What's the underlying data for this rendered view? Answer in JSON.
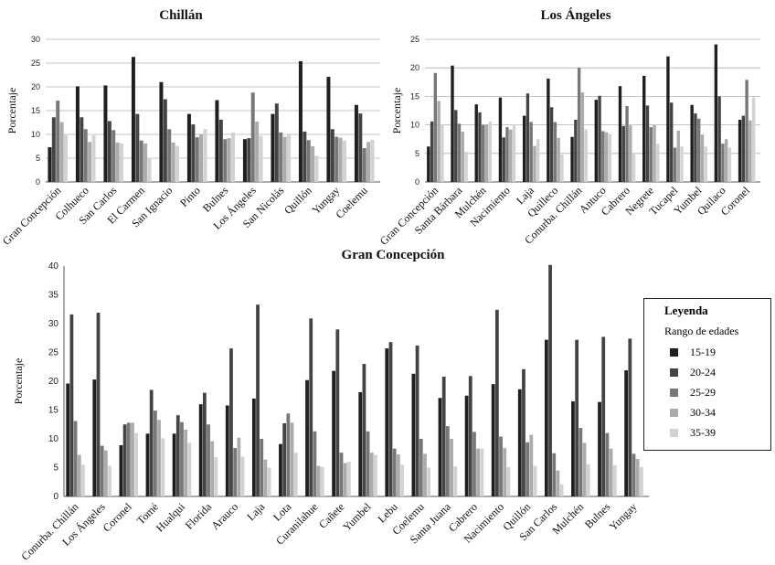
{
  "colors": [
    "#1f1f1f",
    "#444444",
    "#777777",
    "#ababab",
    "#d2d2d2"
  ],
  "legend": {
    "title": "Leyenda",
    "subtitle": "Rango de edades",
    "entries": [
      "15-19",
      "20-24",
      "25-29",
      "30-34",
      "35-39"
    ]
  },
  "chart_data": [
    {
      "type": "bar",
      "title": "Chillán",
      "ylabel": "Porcentaje",
      "xlabel": "",
      "ylim": [
        0,
        30
      ],
      "yticks": [
        0,
        5,
        10,
        15,
        20,
        25,
        30
      ],
      "grid": true,
      "categories": [
        "Gran Concepción",
        "Colhueco",
        "San Carlos",
        "El Carmen",
        "San Ignacio",
        "Pinto",
        "Bulnes",
        "Los Ángeles",
        "San Nicolás",
        "Quillón",
        "Yungay",
        "Coelemu"
      ],
      "series": [
        {
          "name": "15-19",
          "values": [
            7.3,
            20.1,
            20.3,
            26.3,
            21.0,
            14.3,
            17.2,
            9.0,
            14.3,
            25.4,
            22.1,
            16.2
          ]
        },
        {
          "name": "20-24",
          "values": [
            13.6,
            13.6,
            12.8,
            14.3,
            17.4,
            12.1,
            13.1,
            9.2,
            16.5,
            10.6,
            11.1,
            14.4
          ]
        },
        {
          "name": "25-29",
          "values": [
            17.1,
            11.1,
            10.9,
            8.7,
            11.1,
            9.4,
            9.0,
            18.8,
            10.4,
            8.8,
            9.5,
            7.1
          ]
        },
        {
          "name": "30-34",
          "values": [
            12.6,
            8.4,
            8.3,
            8.1,
            8.3,
            10.0,
            9.2,
            12.7,
            9.5,
            7.5,
            9.3,
            8.4
          ]
        },
        {
          "name": "35-39",
          "values": [
            10.1,
            9.8,
            8.1,
            5.1,
            7.6,
            11.1,
            10.4,
            9.7,
            9.9,
            5.5,
            8.7,
            8.9
          ]
        }
      ]
    },
    {
      "type": "bar",
      "title": "Los Ángeles",
      "ylabel": "Porcentaje",
      "xlabel": "",
      "ylim": [
        0,
        25
      ],
      "yticks": [
        0,
        5,
        10,
        15,
        20,
        25
      ],
      "grid": true,
      "categories": [
        "Gran Concepción",
        "Santa Bárbara",
        "Mulchén",
        "Nacimiento",
        "Laja",
        "Quilleco",
        "Conurba. Chillán",
        "Antuco",
        "Cabrero",
        "Negrete",
        "Tucapel",
        "Yumbel",
        "Quilaco",
        "Coronel"
      ],
      "series": [
        {
          "name": "15-19",
          "values": [
            6.2,
            20.4,
            13.6,
            14.8,
            11.6,
            18.1,
            7.9,
            14.4,
            16.8,
            18.6,
            22.0,
            13.5,
            24.1,
            10.9
          ]
        },
        {
          "name": "20-24",
          "values": [
            10.6,
            12.6,
            12.2,
            7.8,
            15.5,
            13.1,
            10.9,
            15.1,
            9.8,
            13.4,
            13.9,
            12.0,
            15.0,
            11.6
          ]
        },
        {
          "name": "25-29",
          "values": [
            19.1,
            10.2,
            10.0,
            9.6,
            10.5,
            10.5,
            20.0,
            8.9,
            13.3,
            9.6,
            6.0,
            11.1,
            6.7,
            17.9
          ]
        },
        {
          "name": "30-34",
          "values": [
            14.2,
            8.8,
            10.1,
            9.2,
            6.3,
            7.7,
            15.7,
            8.7,
            9.9,
            10.0,
            9.0,
            8.3,
            7.5,
            10.8
          ]
        },
        {
          "name": "35-39",
          "values": [
            10.0,
            5.3,
            10.6,
            10.1,
            7.5,
            4.8,
            9.2,
            8.4,
            5.0,
            6.7,
            6.2,
            6.2,
            6.0,
            14.8
          ]
        }
      ]
    },
    {
      "type": "bar",
      "title": "Gran Concepción",
      "ylabel": "Porcentaje",
      "xlabel": "",
      "ylim": [
        0,
        40
      ],
      "yticks": [
        0,
        5,
        10,
        15,
        20,
        25,
        30,
        35,
        40
      ],
      "grid": false,
      "categories": [
        "Conurba. Chillán",
        "Los Ángeles",
        "Coronel",
        "Tomé",
        "Hualqui",
        "Florida",
        "Arauco",
        "Laja",
        "Lota",
        "Curanilahue",
        "Cañete",
        "Yumbel",
        "Lebu",
        "Coelemu",
        "Santa Juana",
        "Cabrero",
        "Nacimiento",
        "Quillón",
        "San Carlos",
        "Mulchén",
        "Bulnes",
        "Yungay"
      ],
      "series": [
        {
          "name": "15-19",
          "values": [
            19.6,
            20.3,
            8.9,
            10.9,
            10.9,
            16.0,
            15.8,
            17.0,
            9.1,
            20.2,
            21.8,
            18.1,
            25.7,
            21.3,
            17.1,
            17.5,
            19.5,
            18.6,
            27.2,
            16.5,
            16.4,
            21.9
          ]
        },
        {
          "name": "20-24",
          "values": [
            31.6,
            31.9,
            12.5,
            18.5,
            14.1,
            18.0,
            25.7,
            33.3,
            12.7,
            30.9,
            29.0,
            23.0,
            26.8,
            26.2,
            20.8,
            20.9,
            32.4,
            22.1,
            40.2,
            27.2,
            27.7,
            27.4
          ]
        },
        {
          "name": "25-29",
          "values": [
            13.1,
            8.8,
            12.8,
            14.9,
            12.9,
            12.5,
            8.4,
            10.0,
            14.4,
            11.3,
            7.6,
            11.3,
            8.3,
            10.0,
            12.2,
            11.2,
            10.4,
            9.4,
            7.5,
            11.9,
            11.0,
            7.4
          ]
        },
        {
          "name": "30-34",
          "values": [
            7.2,
            8.0,
            12.8,
            13.3,
            11.6,
            9.6,
            10.2,
            6.4,
            12.8,
            5.3,
            5.8,
            7.6,
            7.3,
            7.4,
            10.0,
            8.3,
            8.4,
            10.7,
            4.5,
            9.3,
            8.3,
            6.5
          ]
        },
        {
          "name": "35-39",
          "values": [
            5.5,
            5.3,
            11.0,
            10.1,
            9.3,
            6.8,
            6.9,
            5.0,
            7.6,
            5.1,
            6.0,
            7.2,
            5.5,
            5.0,
            5.2,
            8.3,
            5.1,
            5.3,
            2.1,
            5.6,
            5.4,
            5.1
          ]
        }
      ]
    }
  ]
}
